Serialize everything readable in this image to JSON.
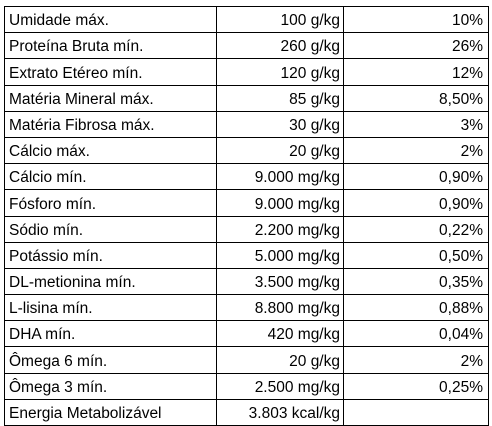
{
  "table": {
    "rows": [
      {
        "name": "Umidade máx.",
        "amount": "100 g/kg",
        "percent": "10%"
      },
      {
        "name": "Proteína Bruta mín.",
        "amount": "260 g/kg",
        "percent": "26%"
      },
      {
        "name": "Extrato Etéreo mín.",
        "amount": "120 g/kg",
        "percent": "12%"
      },
      {
        "name": "Matéria Mineral máx.",
        "amount": "85 g/kg",
        "percent": "8,50%"
      },
      {
        "name": "Matéria Fibrosa máx.",
        "amount": "30 g/kg",
        "percent": "3%"
      },
      {
        "name": "Cálcio máx.",
        "amount": "20 g/kg",
        "percent": "2%"
      },
      {
        "name": "Cálcio mín.",
        "amount": "9.000 mg/kg",
        "percent": "0,90%"
      },
      {
        "name": "Fósforo mín.",
        "amount": "9.000 mg/kg",
        "percent": "0,90%"
      },
      {
        "name": "Sódio mín.",
        "amount": "2.200 mg/kg",
        "percent": "0,22%"
      },
      {
        "name": "Potássio mín.",
        "amount": "5.000 mg/kg",
        "percent": "0,50%"
      },
      {
        "name": "DL-metionina mín.",
        "amount": "3.500 mg/kg",
        "percent": "0,35%"
      },
      {
        "name": "L-lisina mín.",
        "amount": "8.800 mg/kg",
        "percent": "0,88%"
      },
      {
        "name": "DHA mín.",
        "amount": "420 mg/kg",
        "percent": "0,04%"
      },
      {
        "name": "Ômega 6 mín.",
        "amount": "20 g/kg",
        "percent": "2%"
      },
      {
        "name": "Ômega 3 mín.",
        "amount": "2.500 mg/kg",
        "percent": "0,25%"
      },
      {
        "name": "Energia Metabolizável",
        "amount": "3.803 kcal/kg",
        "percent": ""
      }
    ]
  }
}
